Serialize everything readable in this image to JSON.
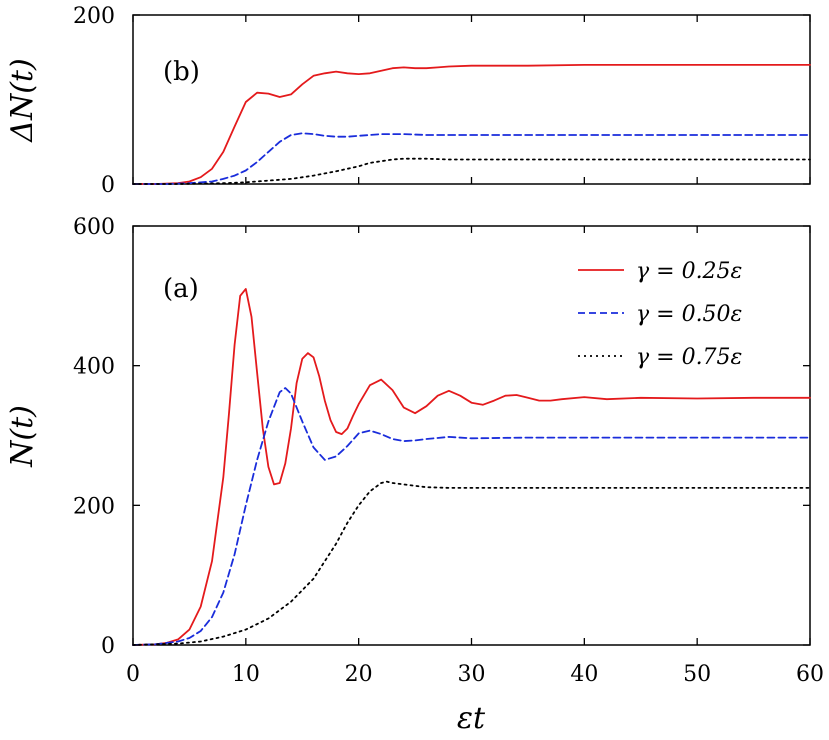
{
  "chart_data": [
    {
      "id": "b",
      "type": "line",
      "panel_label": "(b)",
      "title": "",
      "xlabel": "",
      "ylabel": "ΔN(t)",
      "xlim": [
        0,
        60
      ],
      "ylim": [
        0,
        200
      ],
      "xticks": [
        0,
        10,
        20,
        30,
        40,
        50,
        60
      ],
      "yticks": [
        0,
        200
      ],
      "ytick_labels": [
        "0",
        "200"
      ],
      "grid": false,
      "series": [
        {
          "color": "#e41a1c",
          "dash": "solid",
          "x": [
            0,
            2,
            4,
            5,
            6,
            7,
            8,
            9,
            10,
            11,
            12,
            13,
            14,
            15,
            16,
            17,
            18,
            19,
            20,
            21,
            22,
            23,
            24,
            25,
            26,
            27,
            28,
            30,
            32,
            35,
            40,
            45,
            50,
            55,
            60
          ],
          "y": [
            0,
            0,
            1,
            3,
            8,
            18,
            38,
            68,
            97,
            108,
            107,
            103,
            106,
            118,
            128,
            131,
            133,
            131,
            130,
            131,
            134,
            137,
            138,
            137,
            137,
            138,
            139,
            140,
            140,
            140,
            141,
            141,
            141,
            141,
            141
          ]
        },
        {
          "color": "#1a2ddb",
          "dash": "dashed",
          "x": [
            0,
            3,
            5,
            7,
            8,
            9,
            10,
            11,
            12,
            13,
            14,
            15,
            16,
            17,
            18,
            19,
            20,
            21,
            22,
            24,
            26,
            28,
            30,
            35,
            40,
            50,
            60
          ],
          "y": [
            0,
            0,
            1,
            3,
            6,
            10,
            16,
            26,
            38,
            50,
            58,
            60,
            59,
            57,
            56,
            56,
            57,
            58,
            59,
            59,
            58,
            58,
            58,
            58,
            58,
            58,
            58
          ]
        },
        {
          "color": "#000000",
          "dash": "dotted",
          "x": [
            0,
            4,
            8,
            10,
            12,
            14,
            16,
            18,
            20,
            21,
            22,
            23,
            24,
            26,
            28,
            30,
            35,
            40,
            50,
            60
          ],
          "y": [
            0,
            0,
            1,
            2,
            4,
            6,
            10,
            15,
            21,
            25,
            27,
            29,
            30,
            30,
            29,
            29,
            29,
            29,
            29,
            29
          ]
        }
      ]
    },
    {
      "id": "a",
      "type": "line",
      "panel_label": "(a)",
      "title": "",
      "xlabel": "εt",
      "ylabel": "N(t)",
      "xlim": [
        0,
        60
      ],
      "ylim": [
        0,
        600
      ],
      "xticks": [
        0,
        10,
        20,
        30,
        40,
        50,
        60
      ],
      "xtick_labels": [
        "0",
        "10",
        "20",
        "30",
        "40",
        "50",
        "60"
      ],
      "yticks": [
        0,
        200,
        400,
        600
      ],
      "ytick_labels": [
        "0",
        "200",
        "400",
        "600"
      ],
      "grid": false,
      "legend": "top-right",
      "series": [
        {
          "name": "γ = 0.25ε",
          "color": "#e41a1c",
          "dash": "solid",
          "x": [
            0,
            2,
            3,
            4,
            5,
            6,
            7,
            8,
            8.5,
            9,
            9.5,
            10,
            10.5,
            11,
            11.5,
            12,
            12.5,
            13,
            13.5,
            14,
            14.5,
            15,
            15.5,
            16,
            16.5,
            17,
            17.5,
            18,
            18.5,
            19,
            19.5,
            20,
            21,
            22,
            23,
            24,
            25,
            26,
            27,
            28,
            29,
            30,
            31,
            32,
            33,
            34,
            35,
            36,
            37,
            38,
            40,
            42,
            45,
            50,
            55,
            60
          ],
          "y": [
            0,
            1,
            3,
            8,
            22,
            55,
            120,
            240,
            330,
            430,
            500,
            510,
            470,
            390,
            310,
            255,
            230,
            232,
            260,
            310,
            375,
            410,
            418,
            412,
            385,
            350,
            322,
            305,
            302,
            310,
            328,
            345,
            372,
            380,
            365,
            340,
            332,
            342,
            357,
            364,
            357,
            347,
            344,
            350,
            357,
            358,
            354,
            350,
            350,
            352,
            355,
            352,
            354,
            353,
            354,
            354
          ]
        },
        {
          "name": "γ = 0.50ε",
          "color": "#1a2ddb",
          "dash": "dashed",
          "x": [
            0,
            2,
            4,
            5,
            6,
            7,
            8,
            9,
            10,
            11,
            12,
            13,
            13.5,
            14,
            15,
            16,
            17,
            18,
            19,
            20,
            21,
            22,
            23,
            24,
            25,
            26,
            28,
            30,
            35,
            40,
            50,
            60
          ],
          "y": [
            0,
            1,
            5,
            10,
            20,
            40,
            75,
            130,
            200,
            265,
            320,
            362,
            368,
            360,
            320,
            283,
            265,
            270,
            285,
            303,
            307,
            302,
            295,
            292,
            293,
            295,
            298,
            296,
            297,
            297,
            297,
            297
          ]
        },
        {
          "name": "γ = 0.75ε",
          "color": "#000000",
          "dash": "dotted",
          "x": [
            0,
            4,
            6,
            8,
            10,
            12,
            14,
            16,
            18,
            19,
            20,
            21,
            22,
            22.5,
            23,
            24,
            25,
            26,
            28,
            30,
            35,
            40,
            50,
            60
          ],
          "y": [
            0,
            2,
            5,
            12,
            22,
            38,
            62,
            95,
            145,
            175,
            200,
            220,
            232,
            234,
            232,
            230,
            228,
            226,
            225,
            225,
            225,
            225,
            225,
            225
          ]
        }
      ]
    }
  ]
}
